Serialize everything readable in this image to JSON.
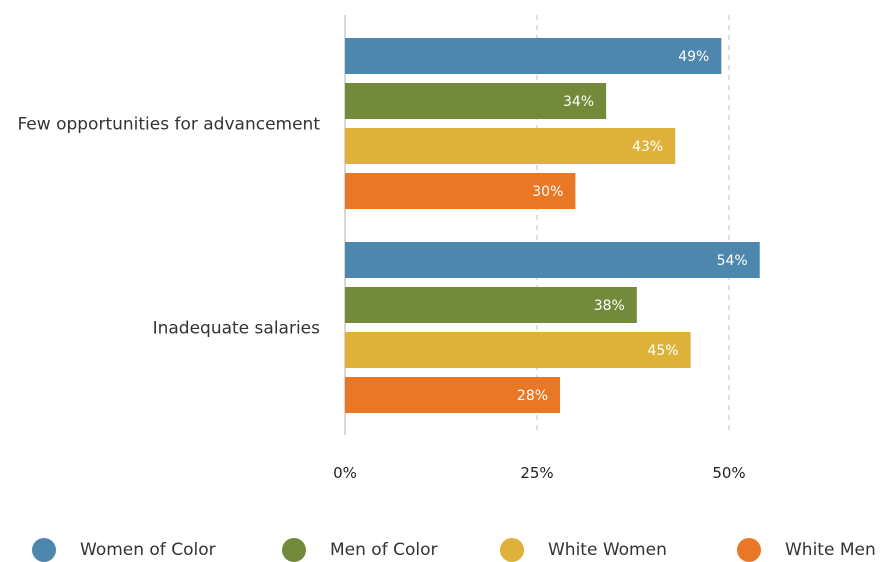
{
  "chart_data": {
    "type": "bar",
    "orientation": "horizontal",
    "categories": [
      "Few opportunities for advancement",
      "Inadequate salaries"
    ],
    "series": [
      {
        "name": "Women of Color",
        "color": "#4E87AE",
        "values": [
          49,
          54
        ],
        "labels": [
          "49%",
          "54%"
        ]
      },
      {
        "name": "Men of Color",
        "color": "#728A3A",
        "values": [
          34,
          38
        ],
        "labels": [
          "34%",
          "38%"
        ]
      },
      {
        "name": "White Women",
        "color": "#DDB13A",
        "values": [
          43,
          45
        ],
        "labels": [
          "43%",
          "45%"
        ]
      },
      {
        "name": "White Men",
        "color": "#E87826",
        "values": [
          30,
          28
        ],
        "labels": [
          "30%",
          "28%"
        ]
      }
    ],
    "xlim": [
      0,
      50
    ],
    "xticks": [
      0,
      25,
      50
    ],
    "xtick_labels": [
      "0%",
      "25%",
      "50%"
    ],
    "title": "",
    "xlabel": "",
    "ylabel": "",
    "grid": "vertical dashed",
    "legend": "bottom"
  }
}
